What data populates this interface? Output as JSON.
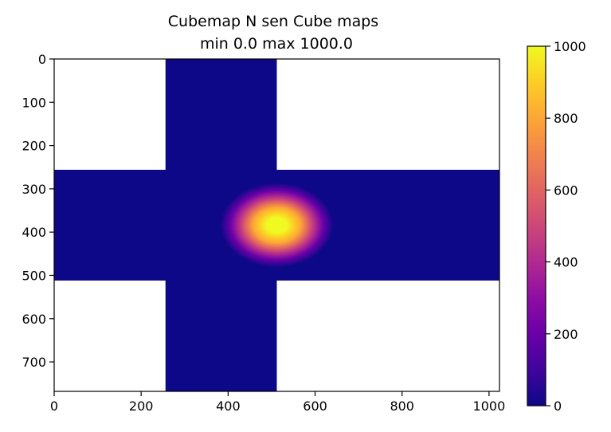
{
  "chart_data": {
    "type": "heatmap",
    "title": [
      "Cubemap  N sen Cube maps",
      "min 0.0 max 1000.0"
    ],
    "xlabel": "",
    "ylabel": "",
    "xlim": [
      0,
      1024
    ],
    "ylim": [
      768,
      0
    ],
    "x_ticks": [
      0,
      200,
      400,
      600,
      800,
      1000
    ],
    "y_ticks": [
      0,
      100,
      200,
      300,
      400,
      500,
      600,
      700
    ],
    "grid": false,
    "colormap": "plasma",
    "colorbar": {
      "min": 0,
      "max": 1000,
      "ticks": [
        0,
        200,
        400,
        600,
        800,
        1000
      ]
    },
    "layout": "cross cubemap (4x3 faces, 256 px per face)",
    "background_value": 0,
    "hotspot": {
      "center": [
        512,
        384
      ],
      "peak_value": 1000,
      "extent_x": [
        380,
        640
      ],
      "extent_y": [
        295,
        490
      ]
    }
  }
}
